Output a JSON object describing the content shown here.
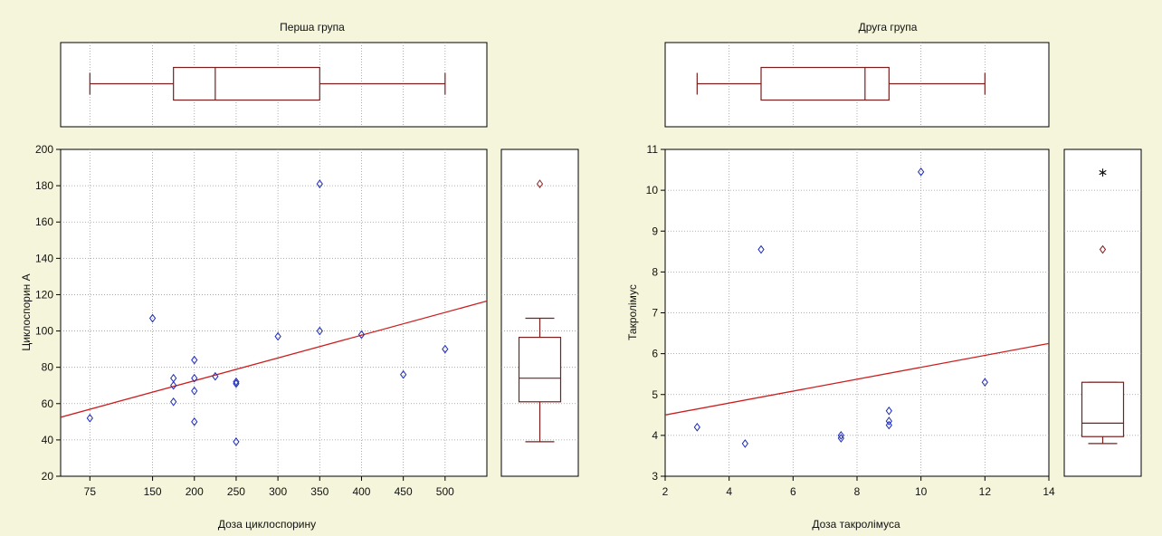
{
  "colors": {
    "background": "#f5f5dc",
    "panel": "#ffffff",
    "grid": "#9a9a9a",
    "marker": "#1d2bb5",
    "outlier_marker": "#8a2a2a",
    "fit_line": "#cc1e1e",
    "box": "#7a1e1e",
    "axis": "#000000"
  },
  "chart_data": [
    {
      "type": "scatter",
      "title": "Перша група",
      "xlabel": "Доза циклоспорину",
      "ylabel": "Циклоспорин А",
      "xlim": [
        40,
        550
      ],
      "ylim": [
        20,
        200
      ],
      "xticks": [
        75,
        150,
        200,
        250,
        300,
        350,
        400,
        450,
        500
      ],
      "yticks": [
        20,
        40,
        60,
        80,
        100,
        120,
        140,
        160,
        180,
        200
      ],
      "x_tick_labels": [
        "75",
        "150",
        "200",
        "250",
        "300",
        "350",
        "400",
        "450",
        "500"
      ],
      "y_tick_labels": [
        "20",
        "40",
        "60",
        "80",
        "100",
        "120",
        "140",
        "160",
        "180",
        "200"
      ],
      "grid": true,
      "points": [
        {
          "x": 75,
          "y": 52
        },
        {
          "x": 150,
          "y": 107
        },
        {
          "x": 175,
          "y": 74
        },
        {
          "x": 175,
          "y": 70
        },
        {
          "x": 175,
          "y": 61
        },
        {
          "x": 200,
          "y": 84
        },
        {
          "x": 200,
          "y": 74
        },
        {
          "x": 200,
          "y": 67
        },
        {
          "x": 200,
          "y": 50
        },
        {
          "x": 225,
          "y": 75
        },
        {
          "x": 250,
          "y": 72
        },
        {
          "x": 250,
          "y": 71
        },
        {
          "x": 250,
          "y": 39
        },
        {
          "x": 300,
          "y": 97
        },
        {
          "x": 350,
          "y": 181
        },
        {
          "x": 350,
          "y": 100
        },
        {
          "x": 400,
          "y": 98
        },
        {
          "x": 450,
          "y": 76
        },
        {
          "x": 500,
          "y": 90
        }
      ],
      "fit_line": {
        "x": [
          40,
          550
        ],
        "y": [
          52.5,
          116.5
        ]
      },
      "x_boxplot": {
        "min": 75,
        "q1": 175,
        "median": 225,
        "q3": 350,
        "max": 500
      },
      "y_boxplot": {
        "min": 39,
        "q1": 61,
        "median": 74,
        "q3": 96.5,
        "max": 107,
        "outliers": [
          181
        ]
      }
    },
    {
      "type": "scatter",
      "title": "Друга група",
      "xlabel": "Доза такролімуса",
      "ylabel": "Такролімус",
      "xlim": [
        2,
        14
      ],
      "ylim": [
        3,
        11
      ],
      "xticks": [
        2,
        4,
        6,
        8,
        10,
        12,
        14
      ],
      "yticks": [
        3,
        4,
        5,
        6,
        7,
        8,
        9,
        10,
        11
      ],
      "x_tick_labels": [
        "2",
        "4",
        "6",
        "8",
        "10",
        "12",
        "14"
      ],
      "y_tick_labels": [
        "3",
        "4",
        "5",
        "6",
        "7",
        "8",
        "9",
        "10",
        "11"
      ],
      "grid": true,
      "points": [
        {
          "x": 3,
          "y": 4.2
        },
        {
          "x": 4.5,
          "y": 3.8
        },
        {
          "x": 5,
          "y": 8.55
        },
        {
          "x": 7.5,
          "y": 4.0
        },
        {
          "x": 7.5,
          "y": 3.93
        },
        {
          "x": 9,
          "y": 4.6
        },
        {
          "x": 9,
          "y": 4.35
        },
        {
          "x": 9,
          "y": 4.25
        },
        {
          "x": 10,
          "y": 10.45
        },
        {
          "x": 12,
          "y": 5.3
        }
      ],
      "fit_line": {
        "x": [
          2,
          14
        ],
        "y": [
          4.5,
          6.25
        ]
      },
      "x_boxplot": {
        "min": 3,
        "q1": 5,
        "median": 8.25,
        "q3": 9,
        "max": 12
      },
      "y_boxplot": {
        "min": 3.8,
        "q1": 3.97,
        "median": 4.3,
        "q3": 5.3,
        "max": 5.3,
        "outliers": [
          8.55
        ],
        "extremes": [
          10.45
        ]
      }
    }
  ]
}
